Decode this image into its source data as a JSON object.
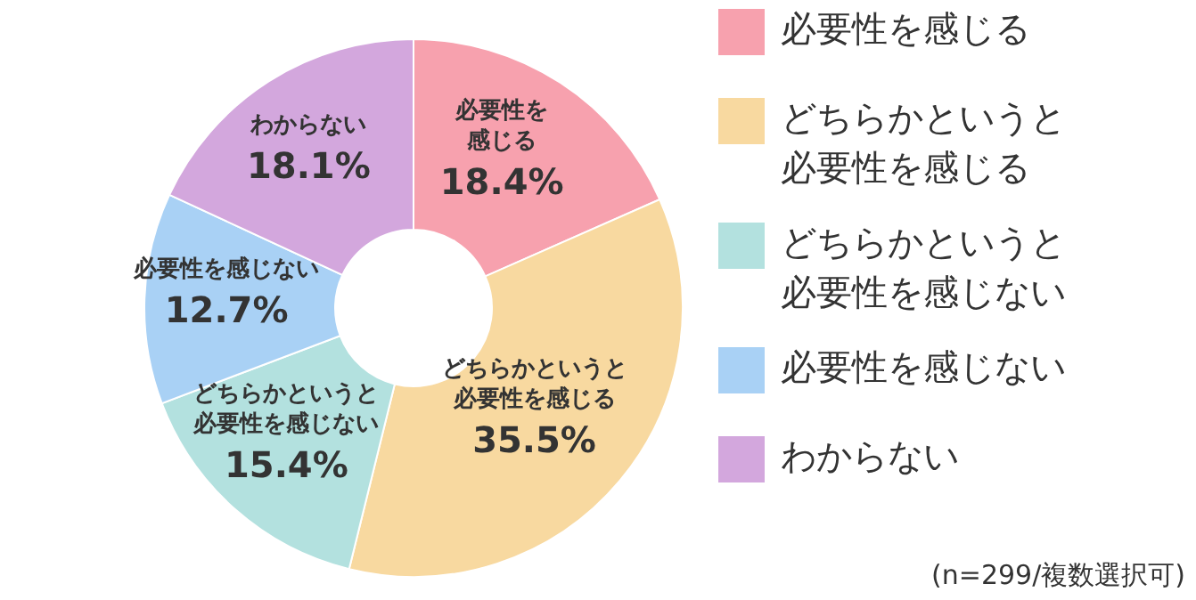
{
  "chart_data": {
    "type": "donut",
    "categories": [
      "必要性を感じる",
      "どちらかというと必要性を感じる",
      "どちらかというと必要性を感じない",
      "必要性を感じない",
      "わからない"
    ],
    "values": [
      18.4,
      35.5,
      15.4,
      12.7,
      18.1
    ],
    "value_labels": [
      "18.4%",
      "35.5%",
      "15.4%",
      "12.7%",
      "18.1%"
    ],
    "colors": [
      "#f7a1ae",
      "#f8d9a0",
      "#b3e1df",
      "#a9d1f5",
      "#d3a7dd"
    ],
    "legend": "right",
    "annotations": [
      "(n=299/複数選択可)"
    ]
  }
}
